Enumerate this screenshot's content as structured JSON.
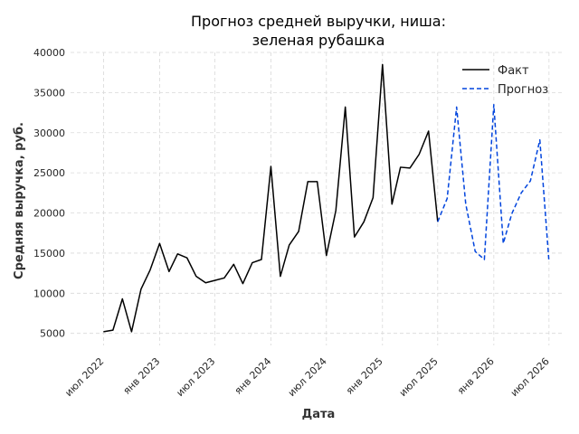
{
  "chart_data": {
    "type": "line",
    "title": [
      "Прогноз средней выручки, ниша:",
      "зеленая рубашка"
    ],
    "xlabel": "Дата",
    "ylabel": "Средняя выручка, руб.",
    "ylim": [
      3500,
      40000
    ],
    "yticks": [
      5000,
      10000,
      15000,
      20000,
      25000,
      30000,
      35000,
      40000
    ],
    "xlim": [
      "2022-03-15",
      "2026-08-15"
    ],
    "xticks": [
      {
        "date": "2022-07-01",
        "label": "июл 2022"
      },
      {
        "date": "2023-01-01",
        "label": "янв 2023"
      },
      {
        "date": "2023-07-01",
        "label": "июл 2023"
      },
      {
        "date": "2024-01-01",
        "label": "янв 2024"
      },
      {
        "date": "2024-07-01",
        "label": "июл 2024"
      },
      {
        "date": "2025-01-01",
        "label": "янв 2025"
      },
      {
        "date": "2025-07-01",
        "label": "июл 2025"
      },
      {
        "date": "2026-01-01",
        "label": "янв 2026"
      },
      {
        "date": "2026-07-01",
        "label": "июл 2026"
      }
    ],
    "grid": true,
    "legend_position": "top-right",
    "series": [
      {
        "name": "Факт",
        "color": "#000000",
        "style": "solid",
        "x": [
          "2022-07",
          "2022-08",
          "2022-09",
          "2022-10",
          "2022-11",
          "2022-12",
          "2023-01",
          "2023-02",
          "2023-03",
          "2023-04",
          "2023-05",
          "2023-06",
          "2023-07",
          "2023-08",
          "2023-09",
          "2023-10",
          "2023-11",
          "2023-12",
          "2024-01",
          "2024-02",
          "2024-03",
          "2024-04",
          "2024-05",
          "2024-06",
          "2024-07",
          "2024-08",
          "2024-09",
          "2024-10",
          "2024-11",
          "2024-12",
          "2025-01",
          "2025-02",
          "2025-03",
          "2025-04",
          "2025-05",
          "2025-06",
          "2025-07"
        ],
        "values": [
          5200,
          5400,
          9300,
          5200,
          10500,
          12900,
          16200,
          12700,
          14900,
          14400,
          12100,
          11300,
          11600,
          11900,
          13600,
          11200,
          13800,
          14200,
          25800,
          12100,
          16000,
          17700,
          23900,
          23900,
          14700,
          20300,
          33200,
          17000,
          18900,
          21900,
          38500,
          21100,
          25700,
          25600,
          27300,
          30200,
          18900
        ]
      },
      {
        "name": "Прогноз",
        "color": "#0044dd",
        "style": "dashed",
        "x": [
          "2025-07",
          "2025-08",
          "2025-09",
          "2025-10",
          "2025-11",
          "2025-12",
          "2026-01",
          "2026-02",
          "2026-03",
          "2026-04",
          "2026-05",
          "2026-06",
          "2026-07"
        ],
        "values": [
          18900,
          21800,
          33200,
          21100,
          15200,
          14200,
          33500,
          16200,
          19900,
          22500,
          24000,
          29100,
          13900
        ]
      }
    ]
  }
}
